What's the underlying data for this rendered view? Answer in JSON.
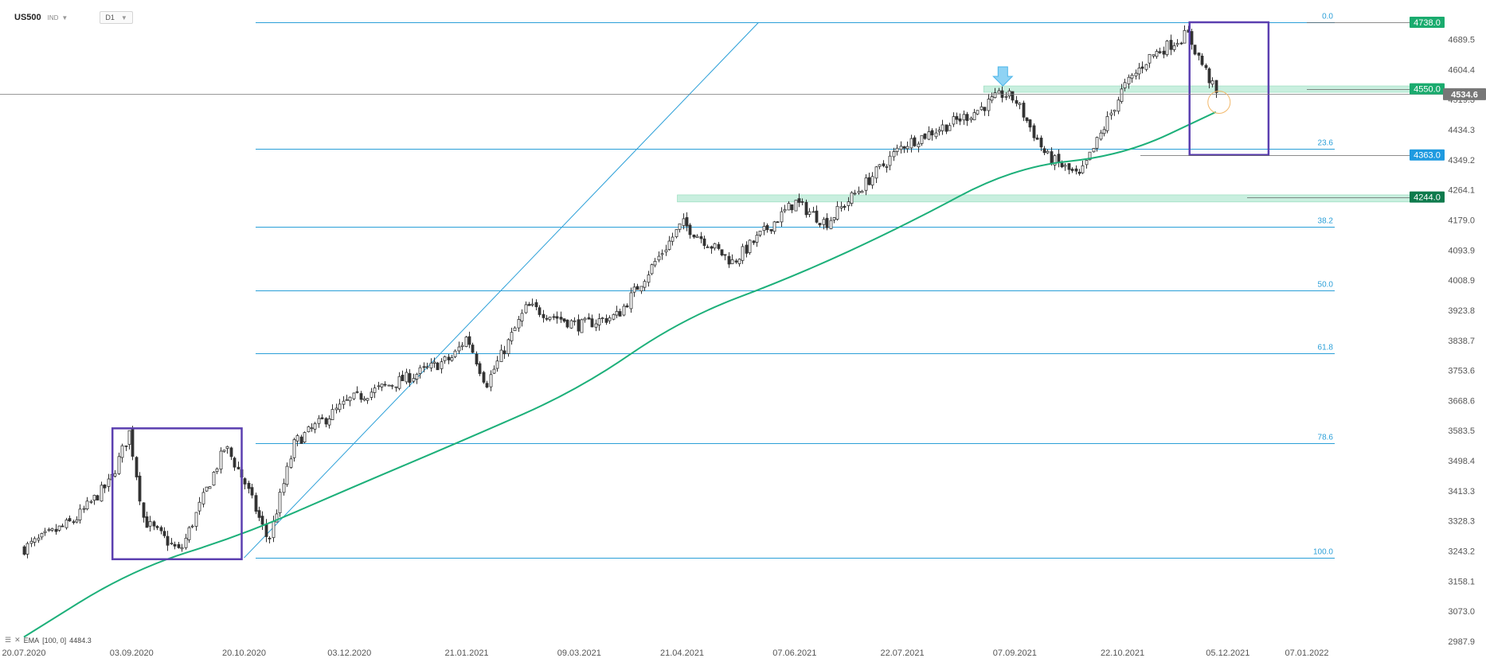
{
  "header": {
    "symbol": "US500",
    "market": "IND",
    "timeframe": "D1"
  },
  "legend": {
    "label": "EMA",
    "params": "[100, 0]",
    "value": "4484.3"
  },
  "colors": {
    "ema": "#1db07a",
    "fib": "#2a9fd8",
    "box": "#5b3fb0",
    "zone": "#b7e9d4",
    "tag_green": "#1aab6e",
    "tag_dark": "#0e7a4c",
    "tag_blue": "#1e9ae0",
    "tag_gray": "#777777",
    "candle_up": "#ffffff",
    "candle_down": "#333333"
  },
  "chart_data": {
    "type": "candlestick",
    "instrument": "US500",
    "timeframe": "D1",
    "ylim": [
      2987.9,
      4738.0
    ],
    "y_ticks": [
      "4689.5",
      "4604.4",
      "4519.3",
      "4434.3",
      "4349.2",
      "4264.1",
      "4179.0",
      "4093.9",
      "4008.9",
      "3923.8",
      "3838.7",
      "3753.6",
      "3668.6",
      "3583.5",
      "3498.4",
      "3413.3",
      "3328.3",
      "3243.2",
      "3158.1",
      "3073.0",
      "2987.9"
    ],
    "x_ticks": [
      "20.07.2020",
      "03.09.2020",
      "20.10.2020",
      "03.12.2020",
      "21.01.2021",
      "09.03.2021",
      "21.04.2021",
      "07.06.2021",
      "22.07.2021",
      "07.09.2021",
      "22.10.2021",
      "05.12.2021",
      "07.01.2022"
    ],
    "close_path": [
      [
        "20.07.2020",
        3251
      ],
      [
        "2020-08-10",
        3330
      ],
      [
        "2020-08-25",
        3440
      ],
      [
        "2020-09-02",
        3580
      ],
      [
        "2020-09-08",
        3330
      ],
      [
        "2020-09-23",
        3240
      ],
      [
        "2020-10-12",
        3540
      ],
      [
        "20.10.2020",
        3440
      ],
      [
        "2020-10-30",
        3270
      ],
      [
        "2020-11-10",
        3550
      ],
      [
        "03.12.2020",
        3670
      ],
      [
        "2020-12-28",
        3735
      ],
      [
        "2021-01-15",
        3790
      ],
      [
        "21.01.2021",
        3850
      ],
      [
        "2021-01-29",
        3715
      ],
      [
        "2021-02-15",
        3935
      ],
      [
        "09.03.2021",
        3880
      ],
      [
        "2021-03-25",
        3910
      ],
      [
        "21.04.2021",
        4170
      ],
      [
        "2021-05-12",
        4060
      ],
      [
        "07.06.2021",
        4230
      ],
      [
        "2021-06-20",
        4170
      ],
      [
        "22.07.2021",
        4390
      ],
      [
        "2021-08-20",
        4480
      ],
      [
        "2021-09-02",
        4536
      ],
      [
        "07.09.2021",
        4520
      ],
      [
        "2021-09-20",
        4360
      ],
      [
        "2021-10-04",
        4300
      ],
      [
        "22.10.2021",
        4550
      ],
      [
        "2021-11-02",
        4640
      ],
      [
        "2021-11-18",
        4705
      ],
      [
        "2021-11-26",
        4594
      ],
      [
        "2021-11-30",
        4534.6
      ]
    ],
    "ema": {
      "label": "EMA",
      "params": "[100, 0]",
      "value": "4484.3",
      "points": [
        [
          "20.07.2020",
          3000
        ],
        [
          "03.09.2020",
          3190
        ],
        [
          "20.10.2020",
          3290
        ],
        [
          "03.12.2020",
          3420
        ],
        [
          "21.01.2021",
          3560
        ],
        [
          "09.03.2021",
          3700
        ],
        [
          "21.04.2021",
          3900
        ],
        [
          "07.06.2021",
          4020
        ],
        [
          "22.07.2021",
          4160
        ],
        [
          "07.09.2021",
          4330
        ],
        [
          "22.10.2021",
          4360
        ],
        [
          "2021-11-30",
          4484.3
        ]
      ]
    },
    "fibonacci": [
      {
        "level": "0.0",
        "price": 4738.0
      },
      {
        "level": "23.6",
        "price": 4381.0
      },
      {
        "level": "38.2",
        "price": 4160.0
      },
      {
        "level": "50.0",
        "price": 3981.0
      },
      {
        "level": "61.8",
        "price": 3802.0
      },
      {
        "level": "78.6",
        "price": 3548.0
      },
      {
        "level": "100.0",
        "price": 3224.0
      }
    ],
    "price_tags": [
      {
        "label": "4738.0",
        "price": 4738.0,
        "style": "green"
      },
      {
        "label": "4550.0",
        "price": 4550.0,
        "style": "green"
      },
      {
        "label": "4534.6",
        "price": 4534.6,
        "style": "gray"
      },
      {
        "label": "4363.0",
        "price": 4363.0,
        "style": "blue"
      },
      {
        "label": "4244.0",
        "price": 4244.0,
        "style": "dark"
      }
    ],
    "zones": [
      {
        "from": "2021-08-25",
        "low": 4540,
        "high": 4558
      },
      {
        "from": "2021-04-19",
        "low": 4230,
        "high": 4250
      }
    ],
    "boxes": [
      {
        "from": "2020-08-26",
        "to": "2020-10-19",
        "low": 3220,
        "high": 3590
      },
      {
        "from": "2021-11-19",
        "to": "2021-12-22",
        "low": 4363,
        "high": 4738
      }
    ],
    "trendline": {
      "from": [
        "20.10.2020",
        3224
      ],
      "to": [
        "2021-05-23",
        4738
      ]
    }
  }
}
